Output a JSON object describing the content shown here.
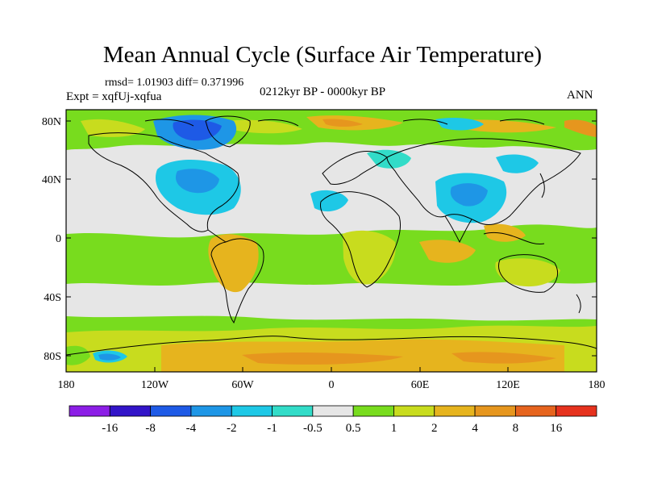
{
  "title": "Mean Annual Cycle (Surface Air Temperature)",
  "stats": "rmsd= 1.01903 diff= 0.371996",
  "experiment": "Expt = xqfUj-xqfua",
  "period": "0212kyr BP - 0000kyr BP",
  "season": "ANN",
  "lat_labels": [
    "80N",
    "40N",
    "0",
    "40S",
    "80S"
  ],
  "lon_labels": [
    "180",
    "120W",
    "60W",
    "0",
    "60E",
    "120E",
    "180"
  ],
  "colorbar": {
    "labels": [
      "-16",
      "-8",
      "-4",
      "-2",
      "-1",
      "-0.5",
      "0.5",
      "1",
      "2",
      "4",
      "8",
      "16"
    ],
    "colors": [
      "#8c1ee6",
      "#3214c8",
      "#1e5ae6",
      "#1e96e6",
      "#1ec8e6",
      "#32dcc8",
      "#e6e6e6",
      "#78dc1e",
      "#c8dc1e",
      "#e6b41e",
      "#e6961e",
      "#e6641e",
      "#e6321e"
    ]
  },
  "colors": {
    "neutral": "#e6e6e6",
    "warm1": "#78dc1e",
    "warm2": "#c8dc1e",
    "warm3": "#e6b41e",
    "warm4": "#e6961e",
    "warm5": "#e6641e",
    "cool1": "#32dcc8",
    "cool2": "#1ec8e6",
    "cool3": "#1e96e6",
    "cool4": "#1e5ae6"
  }
}
